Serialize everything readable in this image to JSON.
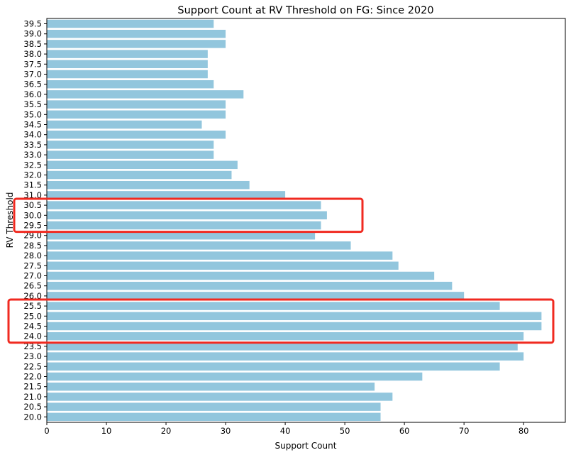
{
  "chart_data": {
    "type": "bar",
    "orientation": "horizontal",
    "title": "Support Count at RV Threshold on FG: Since 2020",
    "xlabel": "Support Count",
    "ylabel": "RV Threshold",
    "xlim": [
      0,
      87
    ],
    "xticks": [
      0,
      10,
      20,
      30,
      40,
      50,
      60,
      70,
      80
    ],
    "categories": [
      "39.5",
      "39.0",
      "38.5",
      "38.0",
      "37.5",
      "37.0",
      "36.5",
      "36.0",
      "35.5",
      "35.0",
      "34.5",
      "34.0",
      "33.5",
      "33.0",
      "32.5",
      "32.0",
      "31.5",
      "31.0",
      "30.5",
      "30.0",
      "29.5",
      "29.0",
      "28.5",
      "28.0",
      "27.5",
      "27.0",
      "26.5",
      "26.0",
      "25.5",
      "25.0",
      "24.5",
      "24.0",
      "23.5",
      "23.0",
      "22.5",
      "22.0",
      "21.5",
      "21.0",
      "20.5",
      "20.0"
    ],
    "values": [
      28,
      30,
      30,
      27,
      27,
      27,
      28,
      33,
      30,
      30,
      26,
      30,
      28,
      28,
      32,
      31,
      34,
      40,
      46,
      47,
      46,
      45,
      51,
      58,
      59,
      65,
      68,
      70,
      76,
      83,
      83,
      80,
      79,
      80,
      76,
      63,
      55,
      58,
      56,
      56
    ],
    "bar_color": "#92c6dd",
    "highlights": [
      {
        "categories": [
          "30.5",
          "30.0",
          "29.5"
        ],
        "color": "#f02a20"
      },
      {
        "categories": [
          "25.5",
          "25.0",
          "24.5",
          "24.0"
        ],
        "color": "#f02a20"
      }
    ]
  }
}
